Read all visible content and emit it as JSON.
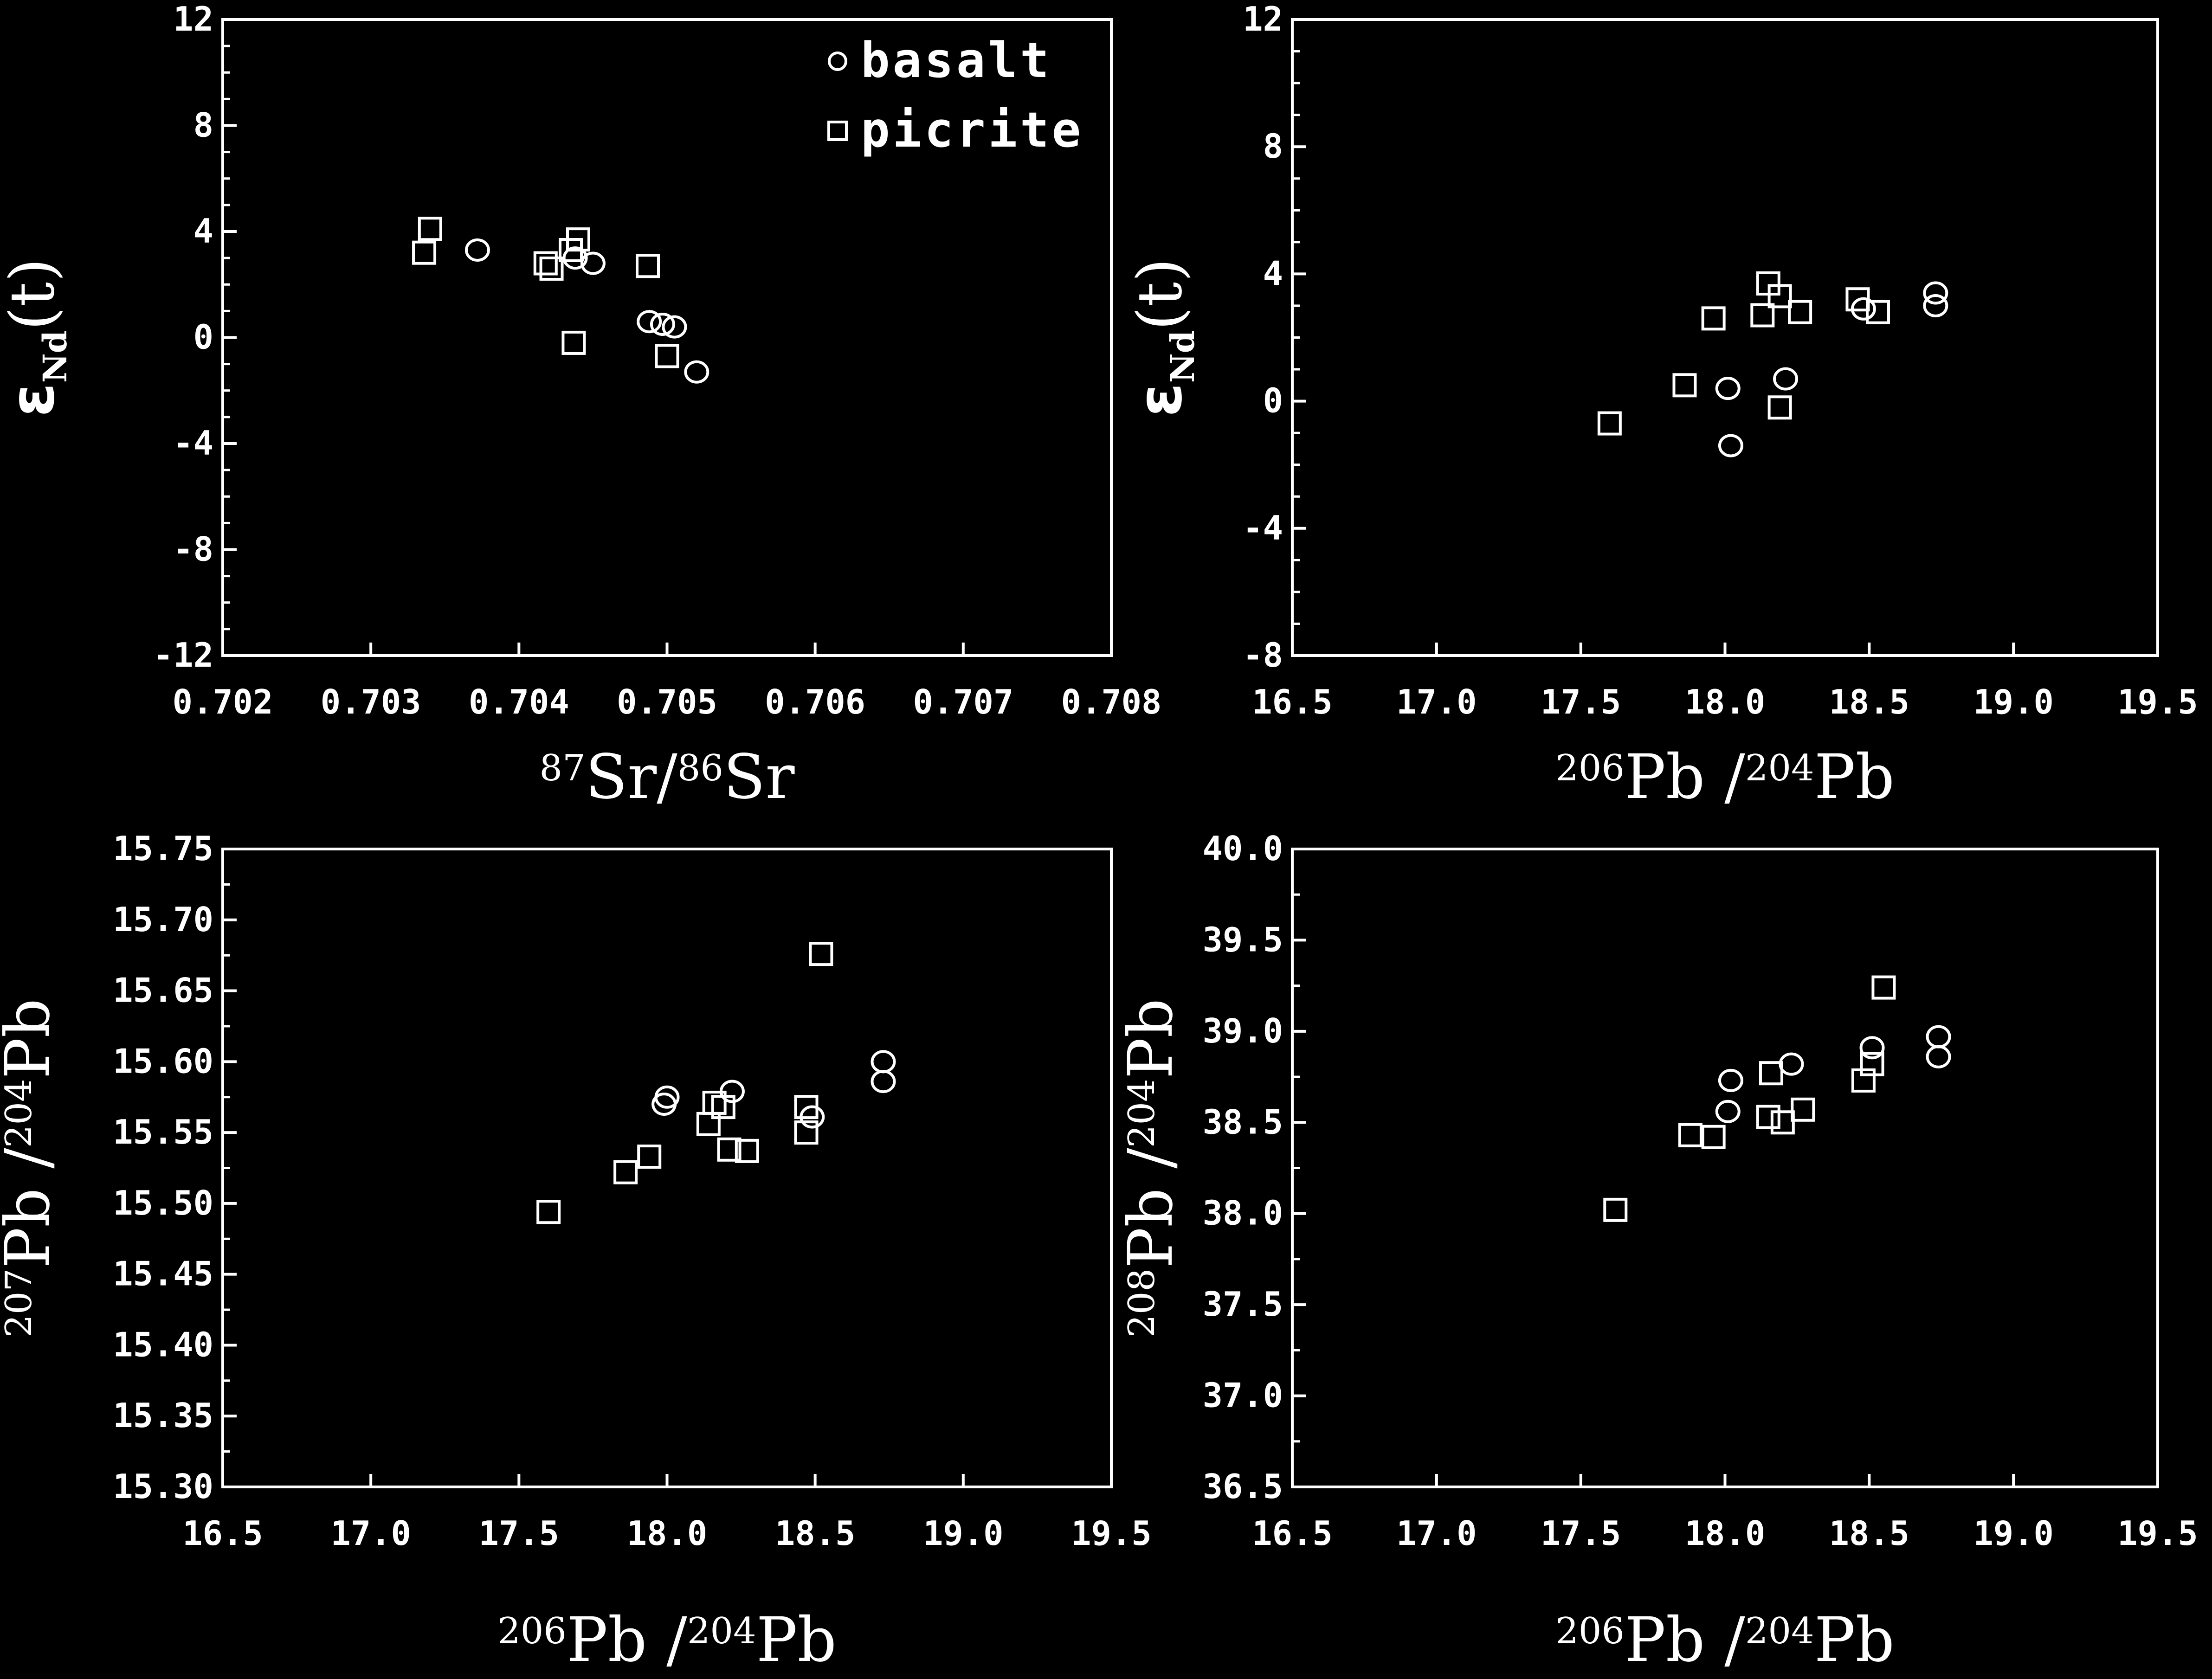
{
  "colors": {
    "background": "#000000",
    "foreground": "#ffffff"
  },
  "chart_data": [
    {
      "type": "scatter",
      "xlabel": {
        "parts": [
          [
            "87",
            "sup"
          ],
          [
            "Sr/",
            ""
          ],
          [
            "86",
            "sup"
          ],
          [
            "Sr",
            ""
          ]
        ]
      },
      "ylabel": {
        "parts": [
          [
            "ε",
            "sym"
          ],
          [
            "Nd",
            "sub"
          ],
          [
            "(t)",
            ""
          ]
        ]
      },
      "xlim": [
        0.702,
        0.708
      ],
      "ylim": [
        -12,
        12
      ],
      "xticks": [
        0.702,
        0.703,
        0.704,
        0.705,
        0.706,
        0.707,
        0.708
      ],
      "xtick_labels": [
        "0.702",
        "0.703",
        "0.704",
        "0.705",
        "0.706",
        "0.707",
        "0.708"
      ],
      "yticks": [
        -12,
        -8,
        -4,
        0,
        4,
        8,
        12
      ],
      "ytick_labels": [
        "-12",
        "-8",
        "-4",
        "0",
        "4",
        "8",
        "12"
      ],
      "legend": {
        "placement": "top-right",
        "entries": [
          {
            "label": "basalt",
            "marker": "circle"
          },
          {
            "label": "picrite",
            "marker": "square"
          }
        ]
      },
      "series": [
        {
          "name": "basalt",
          "marker": "circle",
          "points": [
            [
              0.70372,
              3.3
            ],
            [
              0.70438,
              3.0
            ],
            [
              0.7045,
              2.8
            ],
            [
              0.70488,
              0.6
            ],
            [
              0.70505,
              0.4
            ],
            [
              0.70497,
              0.5
            ],
            [
              0.7052,
              -1.3
            ]
          ]
        },
        {
          "name": "picrite",
          "marker": "square",
          "points": [
            [
              0.7034,
              4.1
            ],
            [
              0.70336,
              3.2
            ],
            [
              0.70418,
              2.8
            ],
            [
              0.70422,
              2.6
            ],
            [
              0.70435,
              3.3
            ],
            [
              0.7044,
              3.7
            ],
            [
              0.70487,
              2.7
            ],
            [
              0.70437,
              -0.2
            ],
            [
              0.705,
              -0.7
            ]
          ]
        }
      ]
    },
    {
      "type": "scatter",
      "xlabel": {
        "parts": [
          [
            "206",
            "sup"
          ],
          [
            "Pb /",
            ""
          ],
          [
            "204",
            "sup"
          ],
          [
            "Pb",
            ""
          ]
        ]
      },
      "ylabel": {
        "parts": [
          [
            "ε",
            "sym"
          ],
          [
            "Nd",
            "sub"
          ],
          [
            "(t)",
            ""
          ]
        ]
      },
      "xlim": [
        16.5,
        19.5
      ],
      "ylim": [
        -8,
        12
      ],
      "xticks": [
        16.5,
        17.0,
        17.5,
        18.0,
        18.5,
        19.0,
        19.5
      ],
      "xtick_labels": [
        "16.5",
        "17.0",
        "17.5",
        "18.0",
        "18.5",
        "19.0",
        "19.5"
      ],
      "yticks": [
        -8,
        -4,
        0,
        4,
        8,
        12
      ],
      "ytick_labels": [
        "-8",
        "-4",
        "0",
        "4",
        "8",
        "12"
      ],
      "series": [
        {
          "name": "basalt",
          "marker": "circle",
          "points": [
            [
              18.01,
              0.4
            ],
            [
              18.21,
              0.7
            ],
            [
              18.02,
              -1.4
            ],
            [
              18.48,
              2.9
            ],
            [
              18.73,
              3.4
            ],
            [
              18.73,
              3.0
            ]
          ]
        },
        {
          "name": "picrite",
          "marker": "square",
          "points": [
            [
              17.6,
              -0.7
            ],
            [
              17.86,
              0.5
            ],
            [
              17.96,
              2.6
            ],
            [
              18.13,
              2.7
            ],
            [
              18.15,
              3.7
            ],
            [
              18.19,
              3.3
            ],
            [
              18.26,
              2.8
            ],
            [
              18.46,
              3.2
            ],
            [
              18.53,
              2.8
            ],
            [
              18.19,
              -0.2
            ]
          ]
        }
      ]
    },
    {
      "type": "scatter",
      "xlabel": {
        "parts": [
          [
            "206",
            "sup"
          ],
          [
            "Pb /",
            ""
          ],
          [
            "204",
            "sup"
          ],
          [
            "Pb",
            ""
          ]
        ]
      },
      "ylabel": {
        "parts": [
          [
            "207",
            "sup"
          ],
          [
            "Pb /",
            ""
          ],
          [
            "204",
            "sup"
          ],
          [
            "Pb",
            ""
          ]
        ]
      },
      "xlim": [
        16.5,
        19.5
      ],
      "ylim": [
        15.3,
        15.75
      ],
      "xticks": [
        16.5,
        17.0,
        17.5,
        18.0,
        18.5,
        19.0,
        19.5
      ],
      "xtick_labels": [
        "16.5",
        "17.0",
        "17.5",
        "18.0",
        "18.5",
        "19.0",
        "19.5"
      ],
      "yticks": [
        15.3,
        15.35,
        15.4,
        15.45,
        15.5,
        15.55,
        15.6,
        15.65,
        15.7,
        15.75
      ],
      "ytick_labels": [
        "15.30",
        "15.35",
        "15.40",
        "15.45",
        "15.50",
        "15.55",
        "15.60",
        "15.65",
        "15.70",
        "15.75"
      ],
      "series": [
        {
          "name": "basalt",
          "marker": "circle",
          "points": [
            [
              18.0,
              15.575
            ],
            [
              17.99,
              15.57
            ],
            [
              18.22,
              15.579
            ],
            [
              18.49,
              15.561
            ],
            [
              18.73,
              15.6
            ],
            [
              18.73,
              15.586
            ]
          ]
        },
        {
          "name": "picrite",
          "marker": "square",
          "points": [
            [
              17.6,
              15.494
            ],
            [
              17.86,
              15.522
            ],
            [
              17.94,
              15.533
            ],
            [
              18.14,
              15.556
            ],
            [
              18.16,
              15.571
            ],
            [
              18.19,
              15.568
            ],
            [
              18.21,
              15.538
            ],
            [
              18.27,
              15.537
            ],
            [
              18.47,
              15.568
            ],
            [
              18.47,
              15.55
            ],
            [
              18.52,
              15.676
            ]
          ]
        }
      ]
    },
    {
      "type": "scatter",
      "xlabel": {
        "parts": [
          [
            "206",
            "sup"
          ],
          [
            "Pb /",
            ""
          ],
          [
            "204",
            "sup"
          ],
          [
            "Pb",
            ""
          ]
        ]
      },
      "ylabel": {
        "parts": [
          [
            "208",
            "sup"
          ],
          [
            "Pb /",
            ""
          ],
          [
            "204",
            "sup"
          ],
          [
            "Pb",
            ""
          ]
        ]
      },
      "xlim": [
        16.5,
        19.5
      ],
      "ylim": [
        36.5,
        40.0
      ],
      "xticks": [
        16.5,
        17.0,
        17.5,
        18.0,
        18.5,
        19.0,
        19.5
      ],
      "xtick_labels": [
        "16.5",
        "17.0",
        "17.5",
        "18.0",
        "18.5",
        "19.0",
        "19.5"
      ],
      "yticks": [
        36.5,
        37.0,
        37.5,
        38.0,
        38.5,
        39.0,
        39.5,
        40.0
      ],
      "ytick_labels": [
        "36.5",
        "37.0",
        "37.5",
        "38.0",
        "38.5",
        "39.0",
        "39.5",
        "40.0"
      ],
      "series": [
        {
          "name": "basalt",
          "marker": "circle",
          "points": [
            [
              18.02,
              38.73
            ],
            [
              18.01,
              38.56
            ],
            [
              18.23,
              38.82
            ],
            [
              18.51,
              38.91
            ],
            [
              18.74,
              38.97
            ],
            [
              18.74,
              38.86
            ]
          ]
        },
        {
          "name": "picrite",
          "marker": "square",
          "points": [
            [
              17.62,
              38.02
            ],
            [
              17.88,
              38.43
            ],
            [
              17.96,
              38.42
            ],
            [
              18.15,
              38.53
            ],
            [
              18.16,
              38.77
            ],
            [
              18.2,
              38.5
            ],
            [
              18.27,
              38.57
            ],
            [
              18.48,
              38.73
            ],
            [
              18.51,
              38.82
            ],
            [
              18.55,
              39.24
            ]
          ]
        }
      ]
    }
  ]
}
